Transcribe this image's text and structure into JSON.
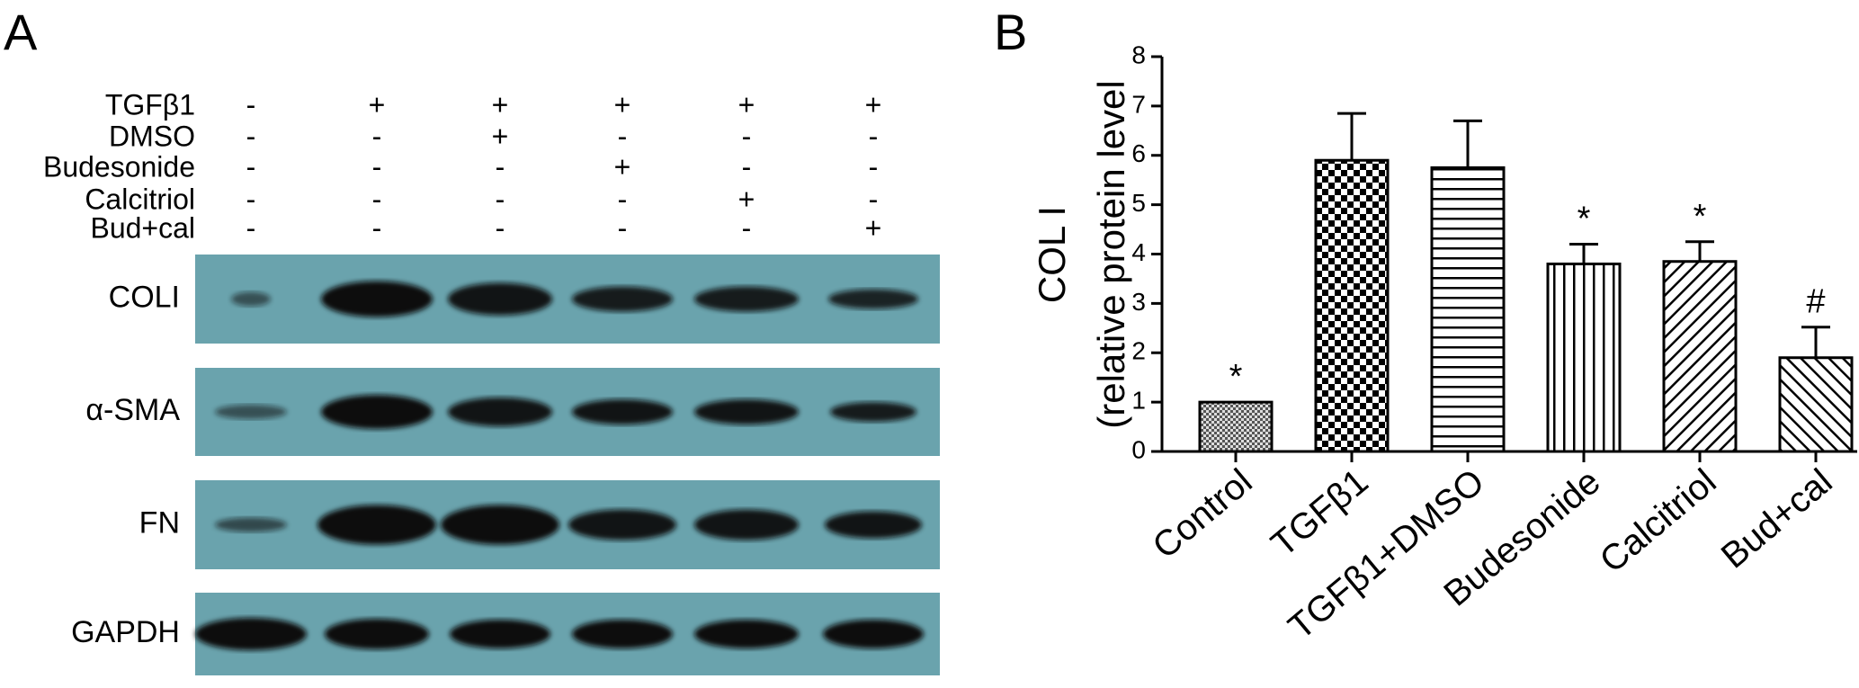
{
  "panel_a": {
    "label": "A",
    "treatments": [
      {
        "name": "TGFβ1",
        "signs": [
          "-",
          "+",
          "+",
          "+",
          "+",
          "+"
        ]
      },
      {
        "name": "DMSO",
        "signs": [
          "-",
          "-",
          "+",
          "-",
          "-",
          "-"
        ]
      },
      {
        "name": "Budesonide",
        "signs": [
          "-",
          "-",
          "-",
          "+",
          "-",
          "-"
        ]
      },
      {
        "name": "Calcitriol",
        "signs": [
          "-",
          "-",
          "-",
          "-",
          "+",
          "-"
        ]
      },
      {
        "name": "Bud+cal",
        "signs": [
          "-",
          "-",
          "-",
          "-",
          "-",
          "+"
        ]
      }
    ],
    "blots": [
      "COLI",
      "α-SMA",
      "FN",
      "GAPDH"
    ]
  },
  "chart_data": {
    "type": "bar",
    "panel_label": "B",
    "ylabel": [
      "COL I",
      "(relative protein level"
    ],
    "categories": [
      "Control",
      "TGFβ1",
      "TGFβ1+DMSO",
      "Budesonide",
      "Calcitriol",
      "Bud+cal"
    ],
    "values": [
      1,
      5.9,
      5.75,
      3.8,
      3.85,
      1.9
    ],
    "errors": [
      0,
      0.95,
      0.95,
      0.4,
      0.4,
      0.62
    ],
    "annotations": [
      "*",
      null,
      null,
      "*",
      "*",
      "#"
    ],
    "hatches": [
      "fine-checker",
      "checker",
      "horizontal",
      "vertical",
      "diagonal-up",
      "diagonal-down"
    ],
    "ylim": [
      0,
      8
    ],
    "yticks": [
      0,
      1,
      2,
      3,
      4,
      5,
      6,
      7,
      8
    ]
  }
}
